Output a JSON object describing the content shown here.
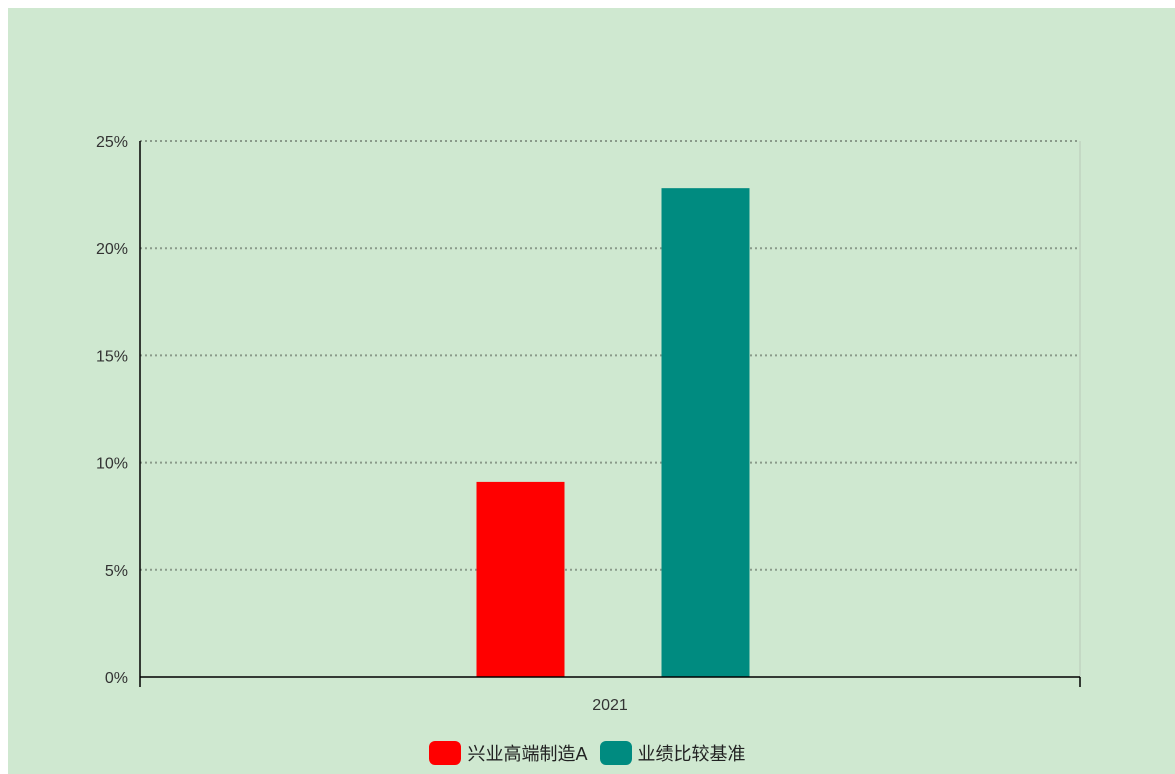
{
  "chart_data": {
    "type": "bar",
    "categories": [
      "2021"
    ],
    "series": [
      {
        "name": "兴业高端制造A",
        "values": [
          9.1
        ],
        "color": "#ff0000"
      },
      {
        "name": "业绩比较基准",
        "values": [
          22.8
        ],
        "color": "#008b80"
      }
    ],
    "ylim": [
      0,
      25
    ],
    "yticks": [
      "0%",
      "5%",
      "10%",
      "15%",
      "20%",
      "25%"
    ],
    "ytick_values": [
      0,
      5,
      10,
      15,
      20,
      25
    ],
    "grid": true,
    "legend_position": "bottom"
  },
  "colors": {
    "background": "#cfe8d0",
    "grid": "#8a9a8a",
    "axis": "#000000"
  }
}
